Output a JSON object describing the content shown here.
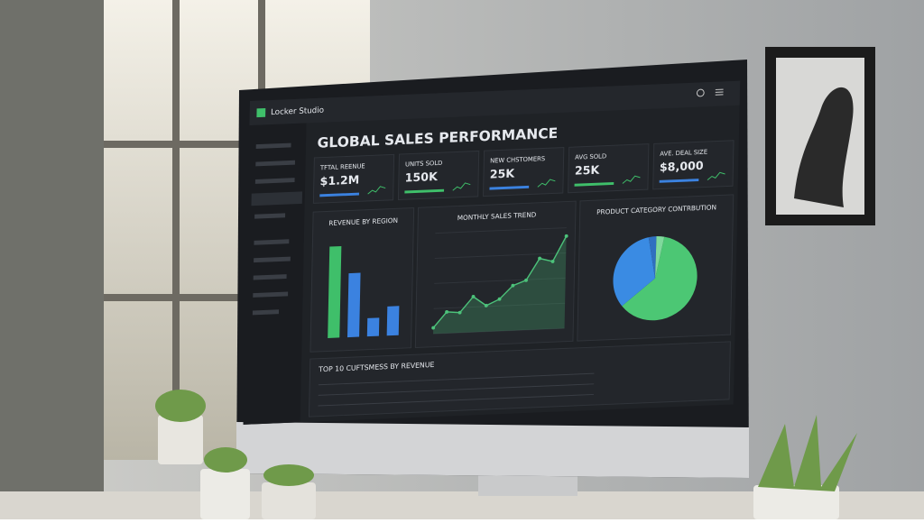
{
  "app": {
    "name": "Locker Studio"
  },
  "dashboard": {
    "title": "GLOBAL SALES PERFORMANCE",
    "kpis": [
      {
        "label": "TFTAL REENUE",
        "value": "$1.2M"
      },
      {
        "label": "UNITS SOLD",
        "value": "150K"
      },
      {
        "label": "NEW CHSTOMERS",
        "value": "25K"
      },
      {
        "label": "AVG SOLD",
        "value": "25K"
      },
      {
        "label": "AVE. DEAL SIZE",
        "value": "$8,000"
      }
    ],
    "table_title": "TOP 10 CUFTSMESS BY REVENUE"
  },
  "chart_data": [
    {
      "type": "bar",
      "title": "REVENUE BY REGION",
      "values": [
        100,
        70,
        20,
        32
      ],
      "colors": [
        "#3fbf6a",
        "#3b82e0",
        "#3b82e0",
        "#3b82e0"
      ],
      "ylim": [
        0,
        110
      ]
    },
    {
      "type": "line",
      "title": "MONTHLY SALES TREND",
      "values": [
        5,
        18,
        17,
        30,
        22,
        27,
        38,
        42,
        60,
        57,
        78
      ],
      "color": "#4cc27a",
      "ylim": [
        0,
        85
      ],
      "grid": true
    },
    {
      "type": "pie",
      "title": "PRODUCT CATEGORY CONTRBUTION",
      "values": [
        61,
        33,
        3,
        3
      ],
      "colors": [
        "#4cc774",
        "#3a8be3",
        "#2f6fc0",
        "#7fd99c"
      ]
    }
  ]
}
